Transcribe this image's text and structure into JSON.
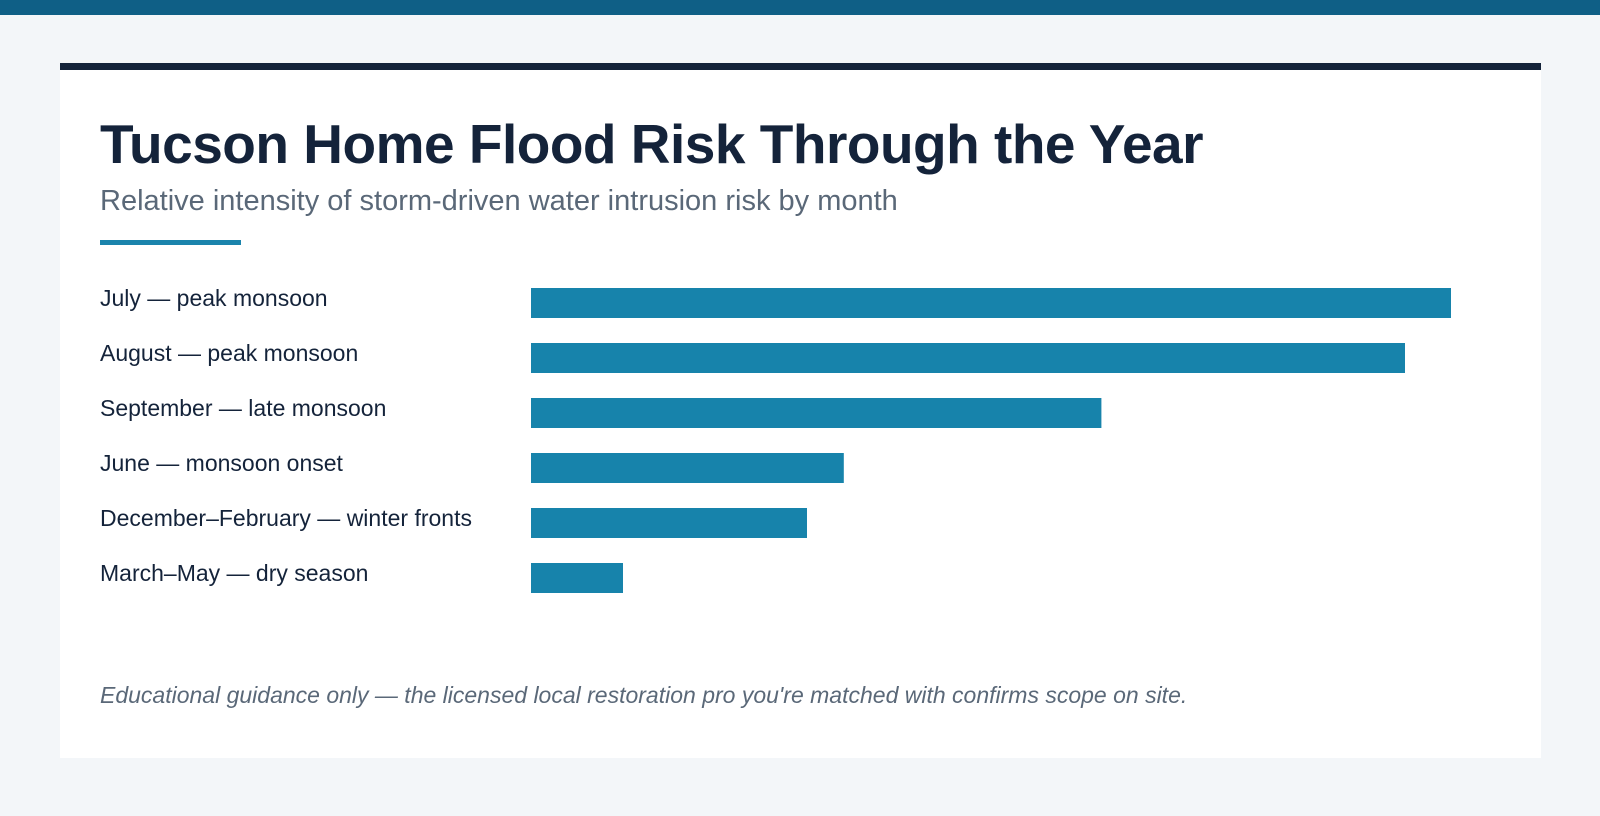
{
  "colors": {
    "top_band": "#0f5f86",
    "title": "#14233a",
    "bar": "#1783ab",
    "accent": "#1b84ac",
    "muted_text": "#5a6878"
  },
  "chart_data": {
    "type": "bar",
    "orientation": "horizontal",
    "title": "Tucson Home Flood Risk Through the Year",
    "subtitle": "Relative intensity of storm-driven water intrusion risk by month",
    "categories": [
      "July — peak monsoon",
      "August — peak monsoon",
      "September — late monsoon",
      "June — monsoon onset",
      "December–February — winter fronts",
      "March–May — dry season"
    ],
    "values": [
      100,
      95,
      62,
      34,
      30,
      10
    ],
    "xlim": [
      0,
      100
    ],
    "grid": false,
    "legend": "none"
  },
  "footnote": "Educational guidance only — the licensed local restoration pro you're matched with confirms scope on site."
}
